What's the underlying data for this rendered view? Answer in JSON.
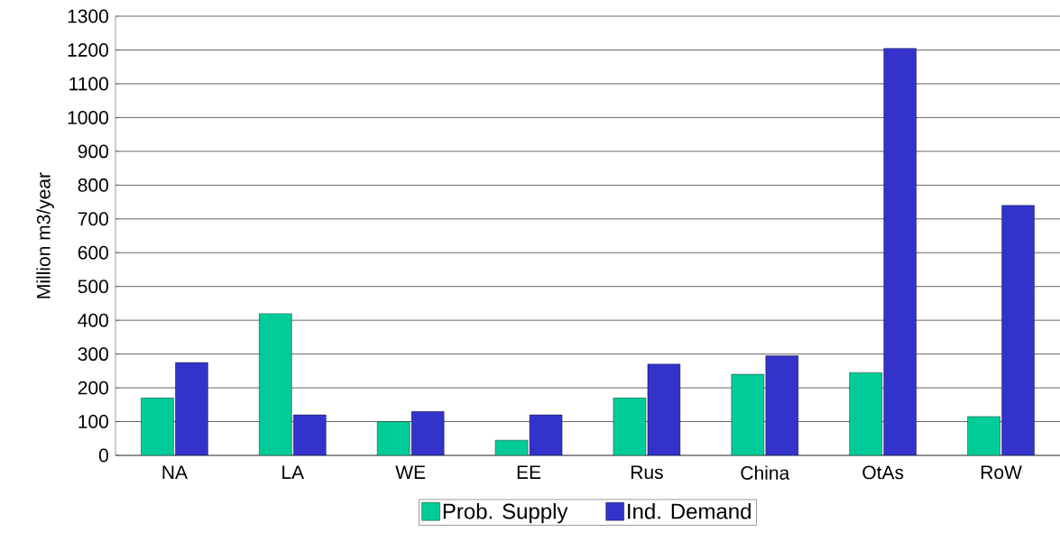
{
  "chart_data": {
    "type": "bar",
    "ylabel": "Million m3/year",
    "categories": [
      "NA",
      "LA",
      "WE",
      "EE",
      "Rus",
      "China",
      "OtAs",
      "RoW"
    ],
    "series": [
      {
        "name": "Prob. Supply",
        "color": "#00cc99",
        "values": [
          170,
          420,
          100,
          45,
          170,
          240,
          245,
          115
        ]
      },
      {
        "name": "Ind. Demand",
        "color": "#3333cc",
        "values": [
          275,
          120,
          130,
          120,
          270,
          295,
          1205,
          740
        ]
      }
    ],
    "ylim": [
      0,
      1300
    ],
    "yticks": [
      0,
      100,
      200,
      300,
      400,
      500,
      600,
      700,
      800,
      900,
      1000,
      1100,
      1200,
      1300
    ],
    "grid": "y",
    "legend": "bottom"
  }
}
